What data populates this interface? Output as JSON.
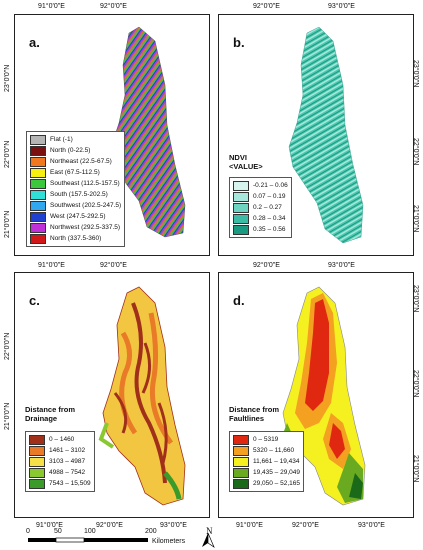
{
  "coords": {
    "lon_top": [
      "91°0'0\"E",
      "92°0'0\"E",
      "92°0'0\"E",
      "93°0'0\"E"
    ],
    "lon_bottom": [
      "91°0'0\"E",
      "92°0'0\"E",
      "93°0'0\"E"
    ],
    "lat": [
      "23°0'0\"N",
      "22°0'0\"N",
      "21°0'0\"N"
    ]
  },
  "panel_a": {
    "label": "a.",
    "legend": [
      {
        "label": "Flat (-1)",
        "color": "#b5b5b5"
      },
      {
        "label": "North (0-22.5)",
        "color": "#7a1010"
      },
      {
        "label": "Northeast (22.5-67.5)",
        "color": "#f07820"
      },
      {
        "label": "East (67.5-112.5)",
        "color": "#f5f010"
      },
      {
        "label": "Southeast (112.5-157.5)",
        "color": "#3cc83c"
      },
      {
        "label": "South (157.5-202.5)",
        "color": "#30e0d8"
      },
      {
        "label": "Southwest (202.5-247.5)",
        "color": "#30a8f0"
      },
      {
        "label": "West (247.5-292.5)",
        "color": "#2040d0"
      },
      {
        "label": "Northwest (292.5-337.5)",
        "color": "#c030d8"
      },
      {
        "label": "North (337.5-360)",
        "color": "#d01818"
      }
    ]
  },
  "panel_b": {
    "label": "b.",
    "legend_title_1": "NDVI",
    "legend_title_2": "<VALUE>",
    "legend": [
      {
        "label": "-0.21 – 0.06",
        "color": "#d8f4ee"
      },
      {
        "label": "0.07 – 0.19",
        "color": "#a8e8dc"
      },
      {
        "label": "0.2 – 0.27",
        "color": "#6cd4c0"
      },
      {
        "label": "0.28 – 0.34",
        "color": "#3cbca4"
      },
      {
        "label": "0.35 – 0.56",
        "color": "#1a9a80"
      }
    ]
  },
  "panel_c": {
    "label": "c.",
    "legend_title_1": "Distance from",
    "legend_title_2": "Drainage",
    "legend": [
      {
        "label": "0 – 1460",
        "color": "#a0301a"
      },
      {
        "label": "1461 – 3102",
        "color": "#e87a28"
      },
      {
        "label": "3103 – 4987",
        "color": "#f5e04a"
      },
      {
        "label": "4988 – 7542",
        "color": "#8ac830"
      },
      {
        "label": "7543 – 15,509",
        "color": "#3a9a2a"
      }
    ]
  },
  "panel_d": {
    "label": "d.",
    "legend_title_1": "Distance from",
    "legend_title_2": "Faultlines",
    "legend": [
      {
        "label": "0 – 5319",
        "color": "#e02810"
      },
      {
        "label": "5320 – 11,660",
        "color": "#f4a020"
      },
      {
        "label": "11,661 – 19,434",
        "color": "#f5f020"
      },
      {
        "label": "19,435 – 29,049",
        "color": "#6aaa20"
      },
      {
        "label": "29,050 – 52,165",
        "color": "#1a6a1a"
      }
    ]
  },
  "scale": {
    "ticks": [
      "0",
      "50",
      "100",
      "200"
    ],
    "unit": "Kilometers"
  },
  "north_label": "N"
}
